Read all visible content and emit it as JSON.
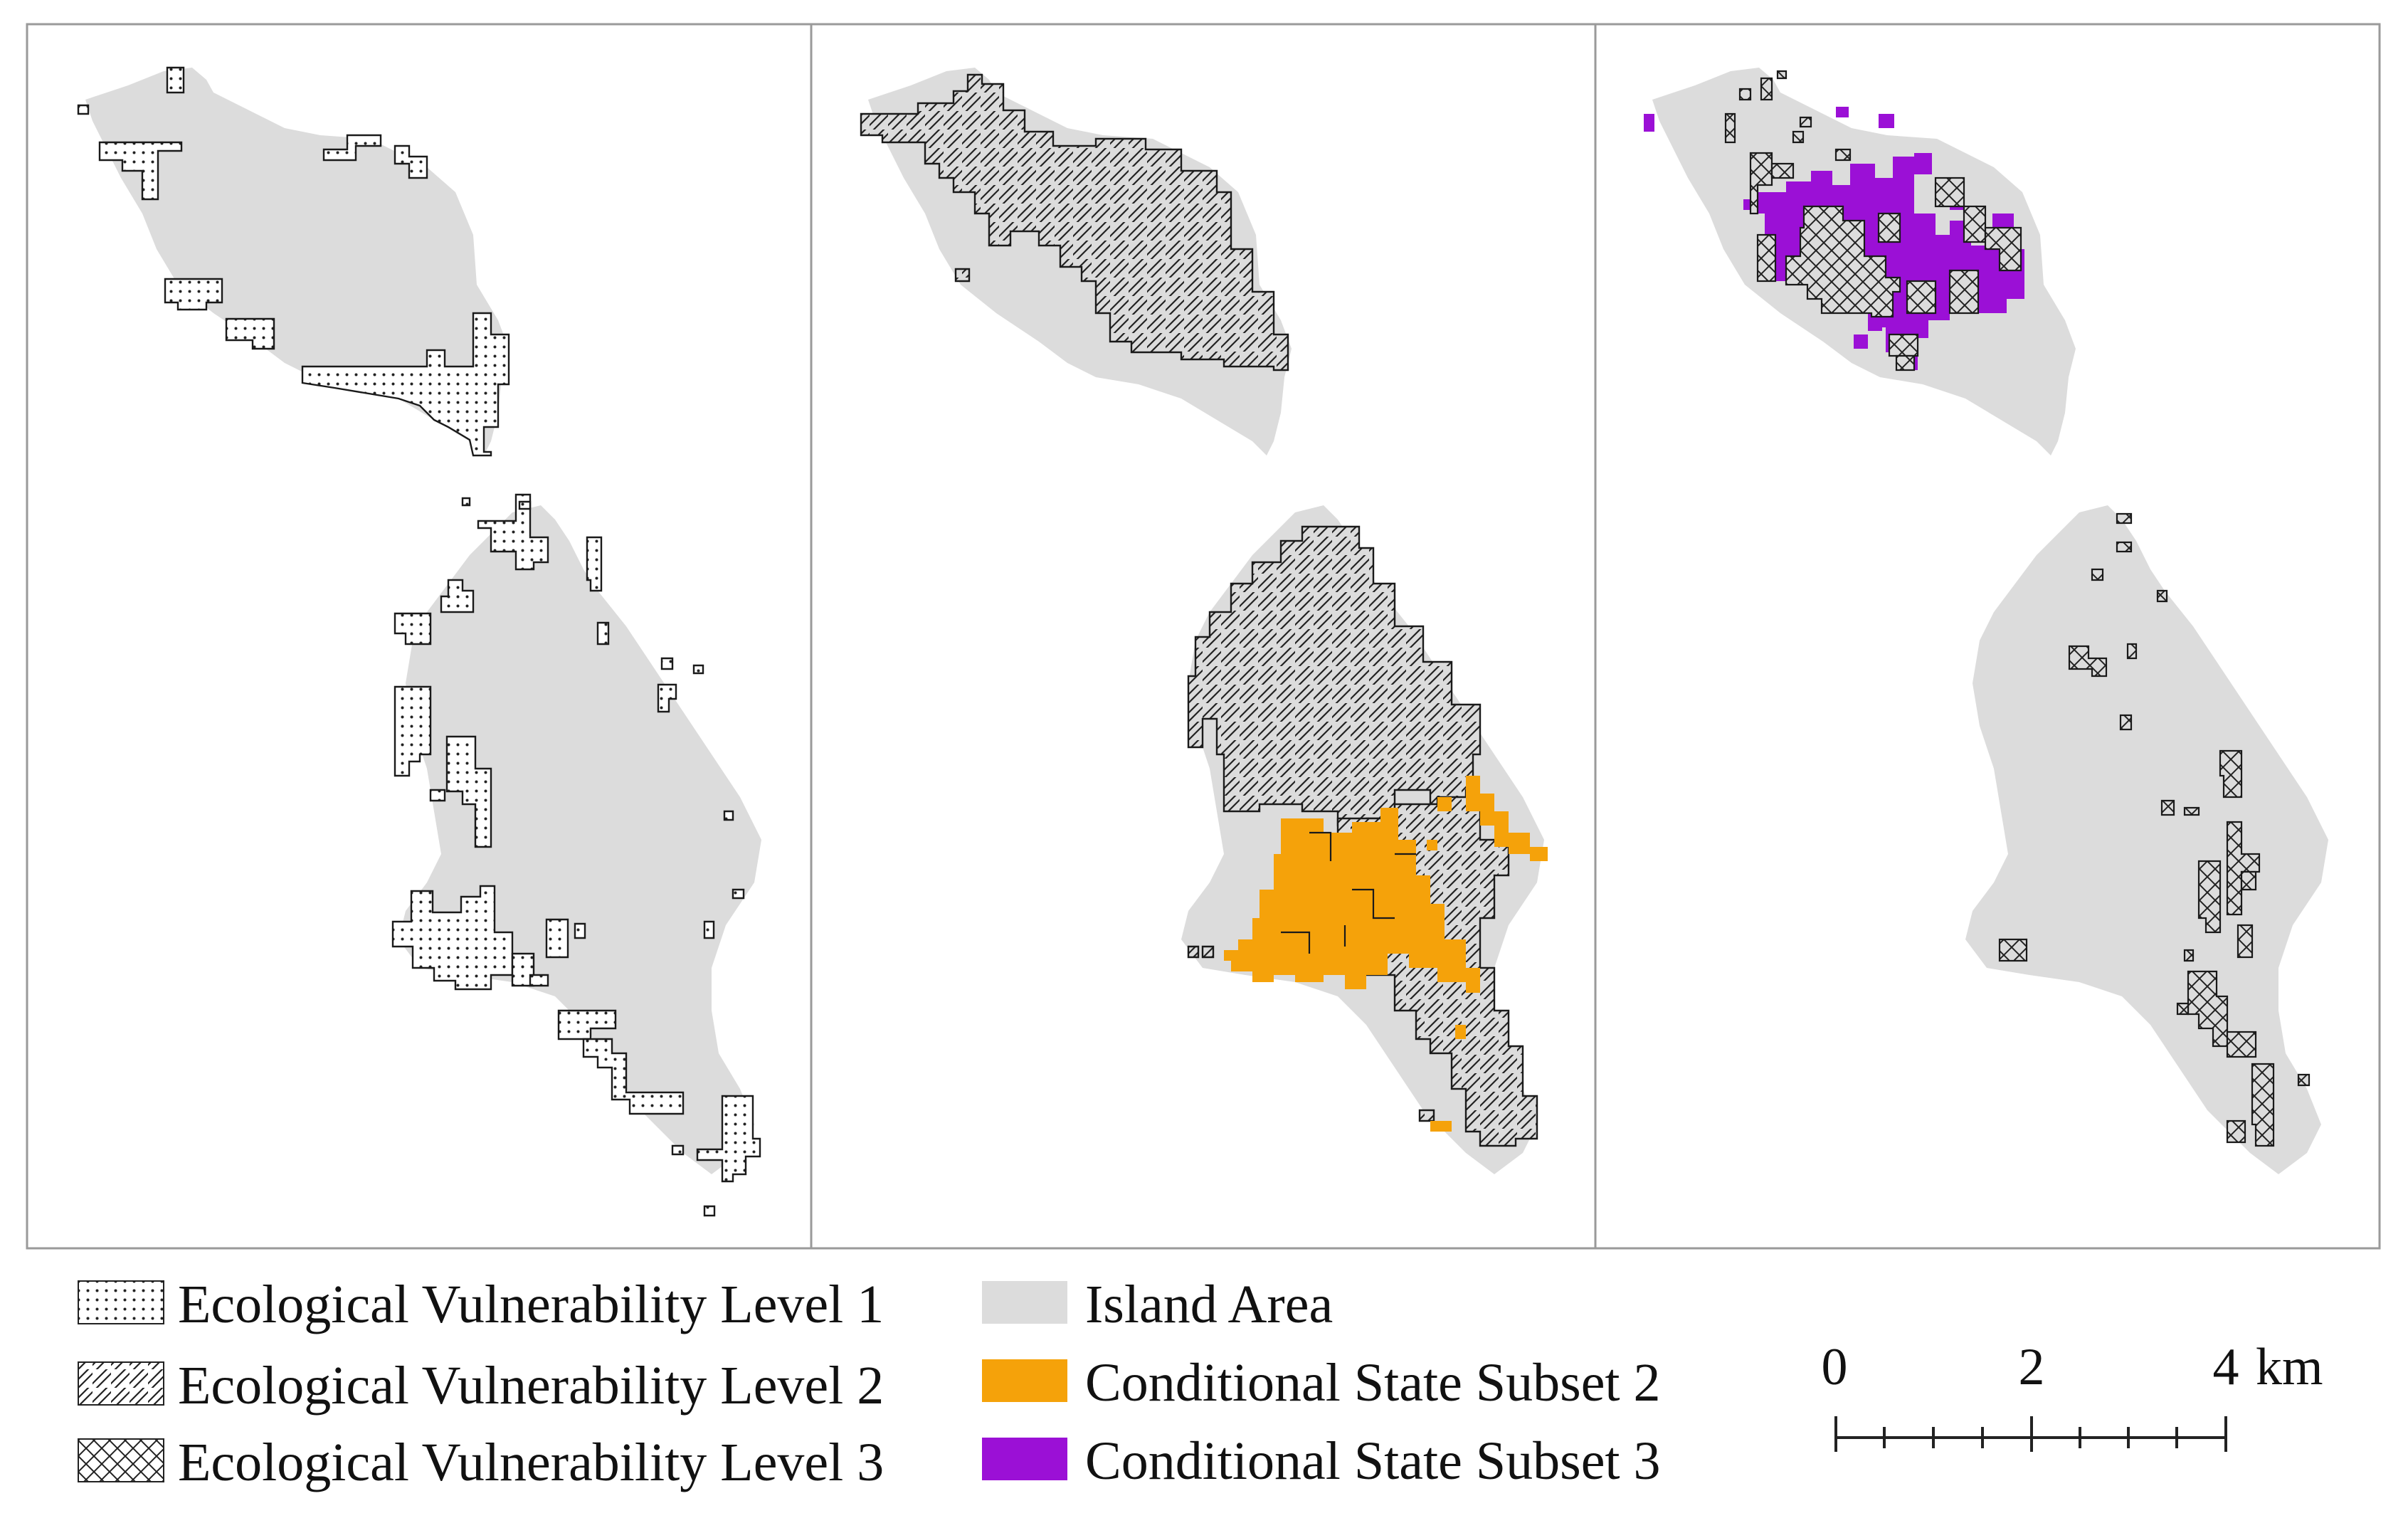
{
  "colors": {
    "island": "#dcdcdc",
    "subset2": "#f5a20a",
    "subset3": "#9b10d6",
    "outline": "#1a1a1a",
    "frame": "#9a9a9a"
  },
  "panels": [
    {
      "id": "level1",
      "pattern": "dots-pattern"
    },
    {
      "id": "level2",
      "pattern": "hatch-pattern"
    },
    {
      "id": "level3",
      "pattern": "cross-pattern"
    }
  ],
  "legend": {
    "level1": "Ecological Vulnerability Level 1",
    "level2": "Ecological Vulnerability Level 2",
    "level3": "Ecological Vulnerability Level 3",
    "island": "Island Area",
    "subset2": "Conditional State Subset 2",
    "subset3": "Conditional State Subset 3"
  },
  "scale_bar": {
    "labels": [
      "0",
      "2",
      "4"
    ],
    "unit": "km"
  }
}
